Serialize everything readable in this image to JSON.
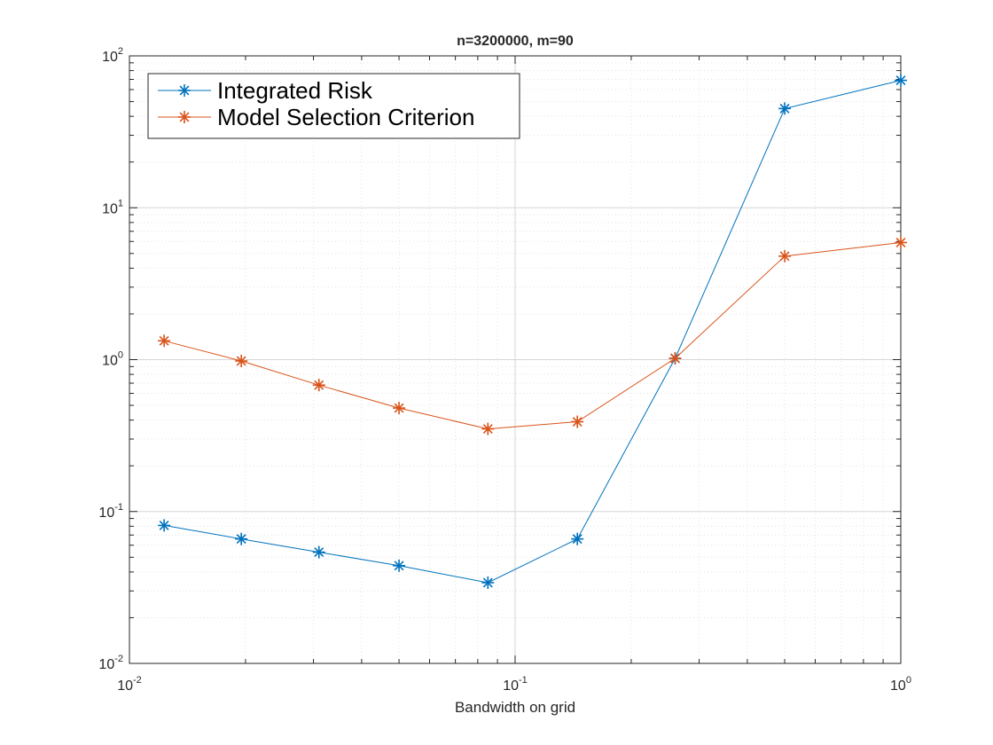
{
  "chart_data": {
    "type": "line",
    "title": "n=3200000, m=90",
    "xlabel": "Bandwidth on grid",
    "ylabel": "",
    "xscale": "log",
    "yscale": "log",
    "xlim": [
      0.01,
      1
    ],
    "ylim": [
      0.01,
      100
    ],
    "grid": true,
    "minor_grid": true,
    "legend_location": "top-left",
    "x_ticks": [
      {
        "base": "10",
        "exp": "-2"
      },
      {
        "base": "10",
        "exp": "-1"
      },
      {
        "base": "10",
        "exp": "0"
      }
    ],
    "y_ticks": [
      {
        "base": "10",
        "exp": "-2"
      },
      {
        "base": "10",
        "exp": "-1"
      },
      {
        "base": "10",
        "exp": "0"
      },
      {
        "base": "10",
        "exp": "1"
      },
      {
        "base": "10",
        "exp": "2"
      }
    ],
    "x": [
      0.0123,
      0.0195,
      0.031,
      0.05,
      0.085,
      0.145,
      0.26,
      0.5,
      1.0
    ],
    "series": [
      {
        "name": "Integrated Risk",
        "color": "#0072BD",
        "marker": "asterisk",
        "values": [
          0.081,
          0.066,
          0.054,
          0.044,
          0.034,
          0.066,
          1.02,
          45,
          69
        ]
      },
      {
        "name": "Model Selection Criterion",
        "color": "#D95319",
        "marker": "asterisk",
        "values": [
          1.33,
          0.98,
          0.68,
          0.48,
          0.35,
          0.39,
          1.02,
          4.8,
          5.9
        ]
      }
    ]
  }
}
